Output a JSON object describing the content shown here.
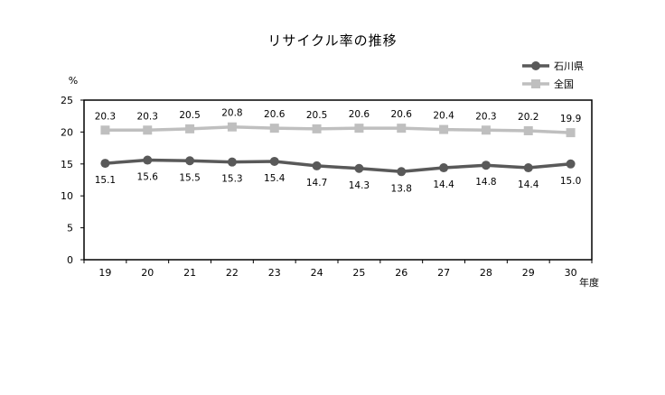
{
  "chart_data": {
    "type": "line",
    "title": "リサイクル率の推移",
    "ylabel": "%",
    "xlabel": "年度",
    "x": [
      "19",
      "20",
      "21",
      "22",
      "23",
      "24",
      "25",
      "26",
      "27",
      "28",
      "29",
      "30"
    ],
    "ylim": [
      0,
      25
    ],
    "yticks": [
      0,
      5,
      10,
      15,
      20,
      25
    ],
    "grid": false,
    "legend_position": "top-right",
    "series": [
      {
        "name": "石川県",
        "color": "#595959",
        "marker": "circle",
        "values": [
          15.1,
          15.6,
          15.5,
          15.3,
          15.4,
          14.7,
          14.3,
          13.8,
          14.4,
          14.8,
          14.4,
          15.0
        ],
        "labels": [
          "15.1",
          "15.6",
          "15.5",
          "15.3",
          "15.4",
          "14.7",
          "14.3",
          "13.8",
          "14.4",
          "14.8",
          "14.4",
          "15.0"
        ],
        "label_position": "below"
      },
      {
        "name": "全国",
        "color": "#bfbfbf",
        "marker": "square",
        "values": [
          20.3,
          20.3,
          20.5,
          20.8,
          20.6,
          20.5,
          20.6,
          20.6,
          20.4,
          20.3,
          20.2,
          19.9
        ],
        "labels": [
          "20.3",
          "20.3",
          "20.5",
          "20.8",
          "20.6",
          "20.5",
          "20.6",
          "20.6",
          "20.4",
          "20.3",
          "20.2",
          "19.9"
        ],
        "label_position": "above"
      }
    ]
  }
}
